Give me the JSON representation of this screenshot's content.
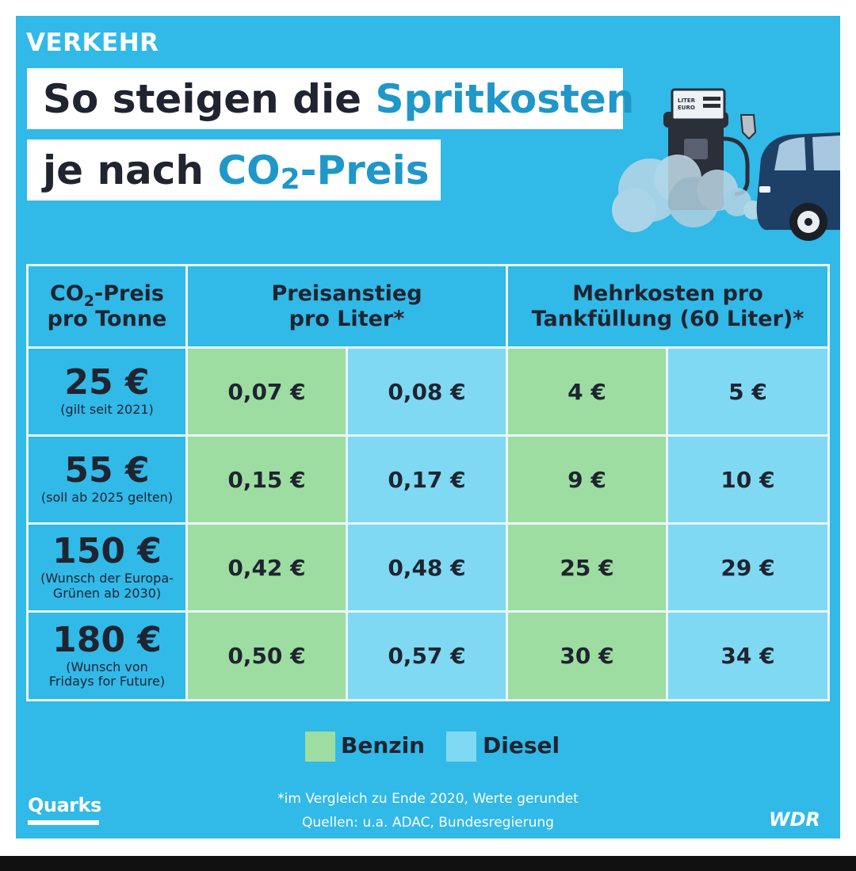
{
  "kicker": "VERKEHR",
  "title": {
    "line1_prefix": "So steigen die ",
    "line1_accent": "Spritkosten",
    "line2_prefix": "je nach ",
    "line2_accent_a": "CO",
    "line2_accent_sub": "2",
    "line2_accent_b": "-Preis"
  },
  "pump": {
    "line1": "LITER",
    "line2": "EURO"
  },
  "table": {
    "header_col1_a": "CO",
    "header_col1_sub": "2",
    "header_col1_b": "-Preis",
    "header_col1_c": "pro Tonne",
    "header_col2_a": "Preisanstieg",
    "header_col2_b": "pro Liter*",
    "header_col3_a": "Mehrkosten pro",
    "header_col3_b": "Tankfüllung (60 Liter)*",
    "rows": [
      {
        "price": "25 €",
        "note1": "(gilt seit 2021)",
        "note2": "",
        "benzin_liter": "0,07 €",
        "diesel_liter": "0,08 €",
        "benzin_tank": "4 €",
        "diesel_tank": "5 €"
      },
      {
        "price": "55 €",
        "note1": "(soll ab 2025 gelten)",
        "note2": "",
        "benzin_liter": "0,15 €",
        "diesel_liter": "0,17 €",
        "benzin_tank": "9 €",
        "diesel_tank": "10 €"
      },
      {
        "price": "150 €",
        "note1": "(Wunsch der Europa-",
        "note2": "Grünen ab 2030)",
        "benzin_liter": "0,42 €",
        "diesel_liter": "0,48 €",
        "benzin_tank": "25 €",
        "diesel_tank": "29 €"
      },
      {
        "price": "180 €",
        "note1": "(Wunsch von",
        "note2": "Fridays for Future)",
        "benzin_liter": "0,50 €",
        "diesel_liter": "0,57 €",
        "benzin_tank": "30 €",
        "diesel_tank": "34 €"
      }
    ]
  },
  "legend": {
    "benzin": "Benzin",
    "diesel": "Diesel"
  },
  "footnote": "*im Vergleich zu Ende 2020, Werte gerundet",
  "sources": "Quellen: u.a. ADAC, Bundesregierung",
  "brand_left": "Quarks",
  "brand_right": "WDR",
  "colors": {
    "background": "#31b9e8",
    "benzin": "#9ddda1",
    "diesel": "#7fd9f3",
    "accent": "#1f97c9",
    "text": "#1f2430"
  }
}
